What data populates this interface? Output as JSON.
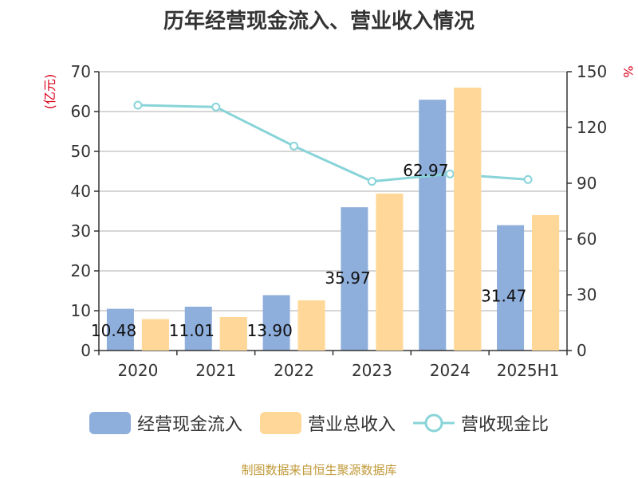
{
  "chart_data": {
    "type": "bar",
    "title": "历年经营现金流入、营业收入情况",
    "categories": [
      "2020",
      "2021",
      "2022",
      "2023",
      "2024",
      "2025H1"
    ],
    "left_axis": {
      "unit": "(亿元)",
      "ylim": [
        0,
        70
      ],
      "ticks": [
        0,
        10,
        20,
        30,
        40,
        50,
        60,
        70
      ]
    },
    "right_axis": {
      "unit": "%",
      "ylim": [
        0,
        150
      ],
      "ticks": [
        0,
        30,
        60,
        90,
        120,
        150
      ]
    },
    "series": [
      {
        "name": "经营现金流入",
        "type": "bar",
        "axis": "left",
        "color": "#8eaedb",
        "values": [
          10.48,
          11.01,
          13.9,
          35.97,
          62.97,
          31.47
        ],
        "labels": [
          "10.48",
          "11.01",
          "13.90",
          "35.97",
          "62.97",
          "31.47"
        ]
      },
      {
        "name": "营业总收入",
        "type": "bar",
        "axis": "left",
        "color": "#ffd899",
        "values": [
          7.9,
          8.4,
          12.6,
          39.4,
          66.0,
          34.0
        ]
      },
      {
        "name": "营收现金比",
        "type": "line",
        "axis": "right",
        "color": "#88d4d8",
        "values": [
          132,
          131,
          110,
          91,
          95,
          92
        ]
      }
    ],
    "grid": true,
    "legend_position": "bottom"
  },
  "source_text": "制图数据来自恒生聚源数据库"
}
